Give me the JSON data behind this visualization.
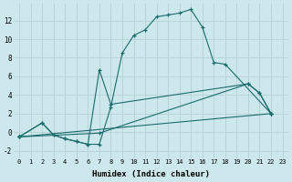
{
  "xlabel": "Humidex (Indice chaleur)",
  "bg_color": "#cde8ec",
  "grid_color": "#b8d4d8",
  "line_color": "#1a6b6b",
  "xlim": [
    -0.5,
    23.5
  ],
  "ylim": [
    -2.8,
    13.8
  ],
  "xticks": [
    0,
    1,
    2,
    3,
    4,
    5,
    6,
    7,
    8,
    9,
    10,
    11,
    12,
    13,
    14,
    15,
    16,
    17,
    18,
    19,
    20,
    21,
    22,
    23
  ],
  "yticks": [
    -2,
    0,
    2,
    4,
    6,
    8,
    10,
    12
  ],
  "series": [
    {
      "x": [
        0,
        2,
        3,
        4,
        5,
        6,
        7,
        8,
        9,
        10,
        11,
        12,
        13,
        14,
        15,
        16,
        17,
        18,
        22
      ],
      "y": [
        -0.5,
        1.0,
        -0.3,
        -0.7,
        -1.0,
        -1.3,
        -1.3,
        2.7,
        8.5,
        10.4,
        11.0,
        12.4,
        12.6,
        12.8,
        13.2,
        11.3,
        7.5,
        7.3,
        2.0
      ]
    },
    {
      "x": [
        0,
        2,
        3,
        4,
        5,
        6,
        7,
        8,
        20,
        21,
        22
      ],
      "y": [
        -0.5,
        1.0,
        -0.3,
        -0.7,
        -1.0,
        -1.3,
        6.7,
        3.0,
        5.2,
        4.2,
        2.0
      ]
    },
    {
      "x": [
        0,
        7,
        20,
        21,
        22
      ],
      "y": [
        -0.5,
        -0.1,
        5.2,
        4.2,
        2.0
      ]
    },
    {
      "x": [
        0,
        22
      ],
      "y": [
        -0.5,
        2.0
      ]
    }
  ]
}
